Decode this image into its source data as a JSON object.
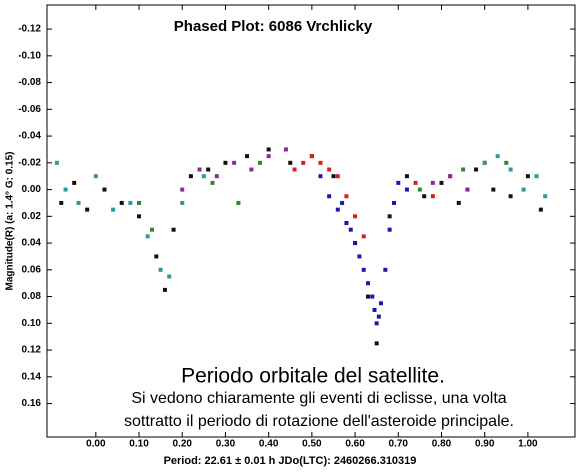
{
  "chart_data": {
    "type": "scatter",
    "title": "Phased Plot: 6086 Vrchlicky",
    "x_label": "Period: 22.61 ± 0.01 h  JDo(LTC): 2460266.310319",
    "y_label": "Magnitude(R)  (a: 1.4°  G: 0.15)",
    "annotations": [
      "Periodo orbitale del satellite.",
      "Si vedono chiaramente gli eventi di eclisse, una volta",
      "sottratto il periodo di rotazione dell'asteroide principale."
    ],
    "xlim": [
      -0.113,
      1.109
    ],
    "ylim": [
      -0.138,
      0.185
    ],
    "invert_y": true,
    "grid": false,
    "xticks": [
      {
        "value": 0,
        "label": "0.00"
      },
      {
        "value": 0.1,
        "label": "0.10"
      },
      {
        "value": 0.2,
        "label": "0.20"
      },
      {
        "value": 0.3,
        "label": "0.30"
      },
      {
        "value": 0.4,
        "label": "0.40"
      },
      {
        "value": 0.5,
        "label": "0.50"
      },
      {
        "value": 0.6,
        "label": "0.60"
      },
      {
        "value": 0.7,
        "label": "0.70"
      },
      {
        "value": 0.8,
        "label": "0.80"
      },
      {
        "value": 0.9,
        "label": "0.90"
      },
      {
        "value": 1,
        "label": "1.00"
      }
    ],
    "yticks": [
      -0.12,
      {
        "value": -0.1,
        "label": "-0.10"
      },
      -0.08,
      -0.06,
      -0.04,
      -0.02,
      {
        "value": 0,
        "label": "0.00"
      },
      0.02,
      0.04,
      0.06,
      0.08,
      {
        "value": 0.1,
        "label": "0.10"
      },
      0.12,
      0.14,
      0.16
    ],
    "series": [
      {
        "color": "#111111",
        "x": [
          -0.08,
          -0.05,
          -0.02,
          0.02,
          0.06,
          0.1,
          0.14,
          0.16,
          0.18,
          0.22,
          0.26,
          0.3,
          0.35,
          0.4,
          0.45,
          0.5,
          0.55,
          0.6,
          0.63,
          0.65,
          0.68,
          0.72,
          0.76,
          0.8,
          0.84,
          0.88,
          0.92,
          0.96,
          1.0,
          1.03
        ],
        "values": [
          0.01,
          -0.005,
          0.015,
          0.0,
          0.01,
          0.02,
          0.05,
          0.075,
          0.03,
          -0.01,
          -0.015,
          -0.02,
          -0.025,
          -0.03,
          -0.02,
          -0.025,
          -0.01,
          0.04,
          0.08,
          0.115,
          0.02,
          -0.01,
          0.005,
          -0.005,
          0.01,
          -0.015,
          0.0,
          0.005,
          -0.01,
          0.015
        ]
      },
      {
        "color": "#1a1aa8",
        "x": [
          0.52,
          0.54,
          0.56,
          0.57,
          0.58,
          0.59,
          0.6,
          0.61,
          0.62,
          0.63,
          0.64,
          0.645,
          0.65,
          0.655,
          0.66,
          0.67,
          0.68,
          0.69,
          0.7,
          0.72
        ],
        "values": [
          -0.01,
          0.005,
          0.015,
          0.01,
          0.025,
          0.03,
          0.04,
          0.05,
          0.06,
          0.07,
          0.08,
          0.09,
          0.1,
          0.095,
          0.085,
          0.06,
          0.03,
          0.01,
          -0.005,
          0.0
        ]
      },
      {
        "color": "#d02020",
        "x": [
          0.46,
          0.48,
          0.5,
          0.52,
          0.54,
          0.56,
          0.58,
          0.6,
          0.62,
          0.74,
          0.78,
          0.82,
          0.86,
          0.9
        ],
        "values": [
          -0.015,
          -0.02,
          -0.025,
          -0.02,
          -0.015,
          -0.01,
          0.005,
          0.02,
          0.035,
          -0.005,
          0.005,
          -0.01,
          0.0,
          -0.02
        ]
      },
      {
        "color": "#2a9a9a",
        "x": [
          -0.09,
          -0.07,
          -0.04,
          0.0,
          0.04,
          0.08,
          0.12,
          0.15,
          0.17,
          0.2,
          0.25,
          0.9,
          0.93,
          0.96,
          0.99,
          1.02,
          1.04
        ],
        "values": [
          -0.02,
          0.0,
          0.01,
          -0.01,
          0.015,
          0.01,
          0.035,
          0.06,
          0.065,
          0.01,
          -0.01,
          -0.02,
          -0.025,
          -0.015,
          0.0,
          -0.01,
          0.005
        ]
      },
      {
        "color": "#8a2a9a",
        "x": [
          0.2,
          0.24,
          0.28,
          0.32,
          0.36,
          0.4,
          0.44,
          0.78,
          0.82,
          0.86
        ],
        "values": [
          0.0,
          -0.015,
          -0.01,
          -0.02,
          -0.015,
          -0.025,
          -0.03,
          -0.005,
          -0.01,
          0.0
        ]
      },
      {
        "color": "#2a8a2a",
        "x": [
          0.1,
          0.13,
          0.27,
          0.33,
          0.38,
          0.75,
          0.85,
          0.95
        ],
        "values": [
          0.01,
          0.03,
          -0.005,
          0.01,
          -0.02,
          0.0,
          -0.015,
          -0.02
        ]
      }
    ]
  }
}
